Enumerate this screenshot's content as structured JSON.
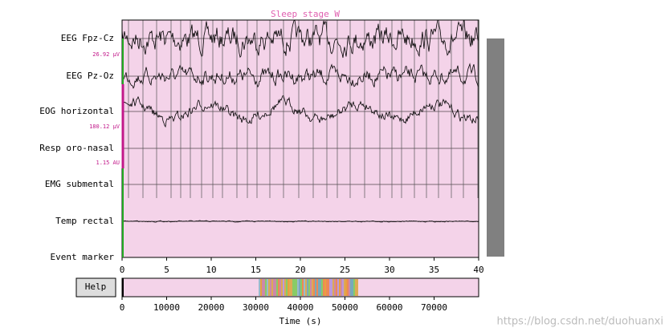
{
  "chart_data": {
    "type": "line",
    "title": "Sleep stage W",
    "channels": [
      "EEG Fpz-Cz",
      "EEG Pz-Oz",
      "EOG horizontal",
      "Resp oro-nasal",
      "EMG submental",
      "Temp rectal",
      "Event marker"
    ],
    "scale_labels": [
      "26.92 μV",
      "180.12 μV",
      "1.15 AU"
    ],
    "xlim": [
      0,
      40
    ],
    "xticks": [
      0,
      5,
      10,
      15,
      20,
      25,
      30,
      35,
      40
    ],
    "xlabel": "Time (s)",
    "overview": {
      "xlim": [
        0,
        80000
      ],
      "xticks": [
        0,
        10000,
        20000,
        30000,
        40000,
        50000,
        60000,
        70000
      ]
    },
    "help": "Help",
    "watermark": "https://blog.csdn.net/duohuanxi"
  }
}
